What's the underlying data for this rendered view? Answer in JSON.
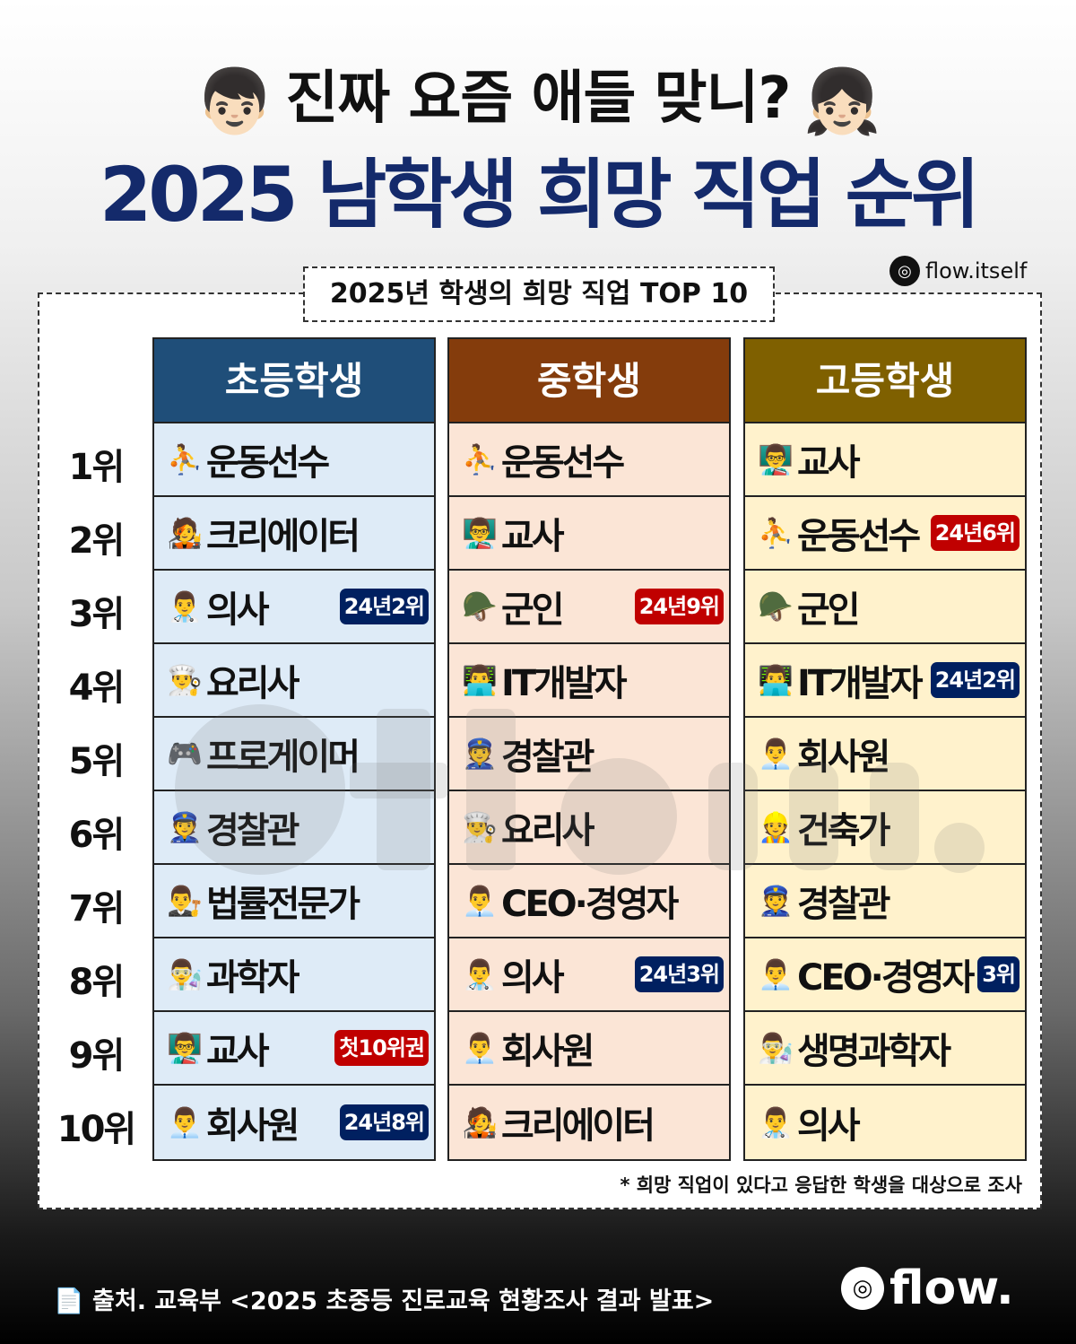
{
  "header": {
    "title_line1": "진짜 요즘 애들 맞니?",
    "boy_emoji": "👦🏻",
    "girl_emoji": "👧🏻",
    "title_line2": "2025 남학생 희망 직업 순위",
    "subtitle": "2025년 학생의 희망 직업 TOP 10",
    "instagram_handle": "flow.itself"
  },
  "ranks": [
    "1위",
    "2위",
    "3위",
    "4위",
    "5위",
    "6위",
    "7위",
    "8위",
    "9위",
    "10위"
  ],
  "colors": {
    "badge_red": "#c00000",
    "badge_navy": "#002060"
  },
  "columns": [
    {
      "header": "초등학생",
      "header_color": "#1f4e79",
      "cell_color": "#deebf7",
      "rows": [
        {
          "icon": "⛹️",
          "job": "운동선수",
          "badge": ""
        },
        {
          "icon": "🧑‍🎤",
          "job": "크리에이터",
          "badge": ""
        },
        {
          "icon": "👨‍⚕️",
          "job": "의사",
          "badge": "24년2위",
          "badge_type": "navy"
        },
        {
          "icon": "👨‍🍳",
          "job": "요리사",
          "badge": ""
        },
        {
          "icon": "🎮",
          "job": "프로게이머",
          "badge": ""
        },
        {
          "icon": "👮",
          "job": "경찰관",
          "badge": ""
        },
        {
          "icon": "👨‍⚖️",
          "job": "법률전문가",
          "badge": ""
        },
        {
          "icon": "👨‍🔬",
          "job": "과학자",
          "badge": ""
        },
        {
          "icon": "👨‍🏫",
          "job": "교사",
          "badge": "첫10위권",
          "badge_type": "red"
        },
        {
          "icon": "👨‍💼",
          "job": "회사원",
          "badge": "24년8위",
          "badge_type": "navy"
        }
      ]
    },
    {
      "header": "중학생",
      "header_color": "#843c0c",
      "cell_color": "#fbe5d6",
      "rows": [
        {
          "icon": "⛹️",
          "job": "운동선수",
          "badge": ""
        },
        {
          "icon": "👨‍🏫",
          "job": "교사",
          "badge": ""
        },
        {
          "icon": "🪖",
          "job": "군인",
          "badge": "24년9위",
          "badge_type": "red"
        },
        {
          "icon": "👨‍💻",
          "job": "IT개발자",
          "badge": ""
        },
        {
          "icon": "👮",
          "job": "경찰관",
          "badge": ""
        },
        {
          "icon": "👨‍🍳",
          "job": "요리사",
          "badge": ""
        },
        {
          "icon": "👨‍💼",
          "job": "CEO·경영자",
          "badge": ""
        },
        {
          "icon": "👨‍⚕️",
          "job": "의사",
          "badge": "24년3위",
          "badge_type": "navy"
        },
        {
          "icon": "👨‍💼",
          "job": "회사원",
          "badge": ""
        },
        {
          "icon": "🧑‍🎤",
          "job": "크리에이터",
          "badge": ""
        }
      ]
    },
    {
      "header": "고등학생",
      "header_color": "#7f6000",
      "cell_color": "#fff2cc",
      "rows": [
        {
          "icon": "👨‍🏫",
          "job": "교사",
          "badge": ""
        },
        {
          "icon": "⛹️",
          "job": "운동선수",
          "badge": "24년6위",
          "badge_type": "red"
        },
        {
          "icon": "🪖",
          "job": "군인",
          "badge": ""
        },
        {
          "icon": "👨‍💻",
          "job": "IT개발자",
          "badge": "24년2위",
          "badge_type": "navy"
        },
        {
          "icon": "👨‍💼",
          "job": "회사원",
          "badge": ""
        },
        {
          "icon": "👷",
          "job": "건축가",
          "badge": ""
        },
        {
          "icon": "👮",
          "job": "경찰관",
          "badge": ""
        },
        {
          "icon": "👨‍💼",
          "job": "CEO·경영자",
          "badge": "3위",
          "badge_type": "navy"
        },
        {
          "icon": "👨‍🔬",
          "job": "생명과학자",
          "badge": ""
        },
        {
          "icon": "👨‍⚕️",
          "job": "의사",
          "badge": ""
        }
      ]
    }
  ],
  "note": "* 희망 직업이 있다고 응답한 학생을 대상으로 조사",
  "footer": {
    "source": "출처. 교육부 <2025 초중등 진로교육 현황조사 결과 발표>",
    "source_icon": "📄",
    "logo": "flow."
  }
}
